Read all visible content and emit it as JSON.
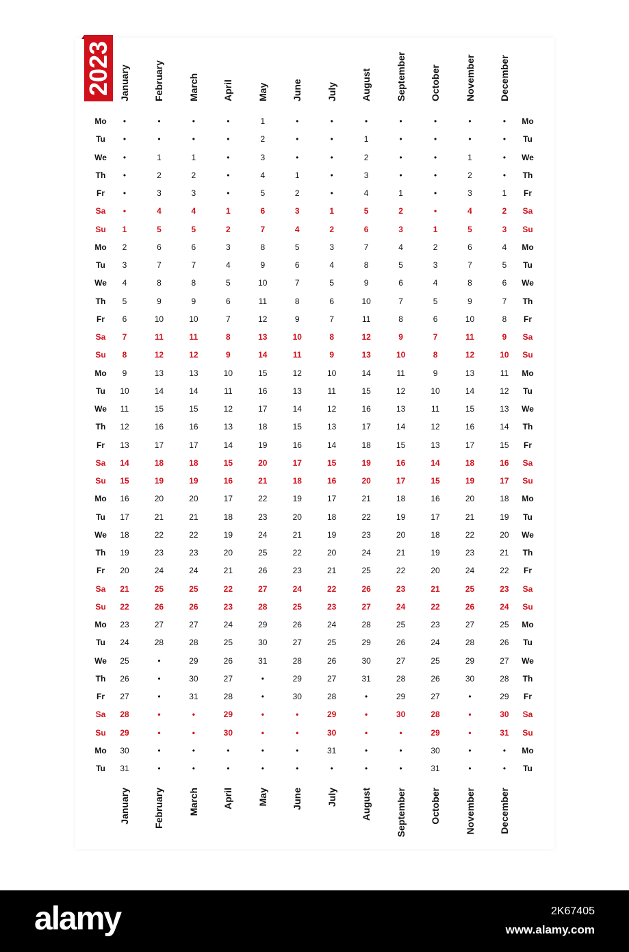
{
  "year": "2023",
  "accent_color": "#d0101b",
  "empty_marker": "•",
  "weekdays": [
    "Mo",
    "Tu",
    "We",
    "Th",
    "Fr",
    "Sa",
    "Su",
    "Mo",
    "Tu",
    "We",
    "Th",
    "Fr",
    "Sa",
    "Su",
    "Mo",
    "Tu",
    "We",
    "Th",
    "Fr",
    "Sa",
    "Su",
    "Mo",
    "Tu",
    "We",
    "Th",
    "Fr",
    "Sa",
    "Su",
    "Mo",
    "Tu",
    "We",
    "Th",
    "Fr",
    "Sa",
    "Su",
    "Mo",
    "Tu"
  ],
  "months": [
    {
      "name": "January",
      "cells": [
        null,
        null,
        null,
        null,
        null,
        null,
        1,
        2,
        3,
        4,
        5,
        6,
        7,
        8,
        9,
        10,
        11,
        12,
        13,
        14,
        15,
        16,
        17,
        18,
        19,
        20,
        21,
        22,
        23,
        24,
        25,
        26,
        27,
        28,
        29,
        30,
        31
      ]
    },
    {
      "name": "February",
      "cells": [
        null,
        null,
        1,
        2,
        3,
        4,
        5,
        6,
        7,
        8,
        9,
        10,
        11,
        12,
        13,
        14,
        15,
        16,
        17,
        18,
        19,
        20,
        21,
        22,
        23,
        24,
        25,
        26,
        27,
        28,
        null,
        null,
        null,
        null,
        null,
        null,
        null
      ]
    },
    {
      "name": "March",
      "cells": [
        null,
        null,
        1,
        2,
        3,
        4,
        5,
        6,
        7,
        8,
        9,
        10,
        11,
        12,
        13,
        14,
        15,
        16,
        17,
        18,
        19,
        20,
        21,
        22,
        23,
        24,
        25,
        26,
        27,
        28,
        29,
        30,
        31,
        null,
        null,
        null,
        null
      ]
    },
    {
      "name": "April",
      "cells": [
        null,
        null,
        null,
        null,
        null,
        1,
        2,
        3,
        4,
        5,
        6,
        7,
        8,
        9,
        10,
        11,
        12,
        13,
        14,
        15,
        16,
        17,
        18,
        19,
        20,
        21,
        22,
        23,
        24,
        25,
        26,
        27,
        28,
        29,
        30,
        null,
        null
      ]
    },
    {
      "name": "May",
      "cells": [
        1,
        2,
        3,
        4,
        5,
        6,
        7,
        8,
        9,
        10,
        11,
        12,
        13,
        14,
        15,
        16,
        17,
        18,
        19,
        20,
        21,
        22,
        23,
        24,
        25,
        26,
        27,
        28,
        29,
        30,
        31,
        null,
        null,
        null,
        null,
        null,
        null
      ]
    },
    {
      "name": "June",
      "cells": [
        null,
        null,
        null,
        1,
        2,
        3,
        4,
        5,
        6,
        7,
        8,
        9,
        10,
        11,
        12,
        13,
        14,
        15,
        16,
        17,
        18,
        19,
        20,
        21,
        22,
        23,
        24,
        25,
        26,
        27,
        28,
        29,
        30,
        null,
        null,
        null,
        null
      ]
    },
    {
      "name": "July",
      "cells": [
        null,
        null,
        null,
        null,
        null,
        1,
        2,
        3,
        4,
        5,
        6,
        7,
        8,
        9,
        10,
        11,
        12,
        13,
        14,
        15,
        16,
        17,
        18,
        19,
        20,
        21,
        22,
        23,
        24,
        25,
        26,
        27,
        28,
        29,
        30,
        31,
        null
      ]
    },
    {
      "name": "August",
      "cells": [
        null,
        1,
        2,
        3,
        4,
        5,
        6,
        7,
        8,
        9,
        10,
        11,
        12,
        13,
        14,
        15,
        16,
        17,
        18,
        19,
        20,
        21,
        22,
        23,
        24,
        25,
        26,
        27,
        28,
        29,
        30,
        31,
        null,
        null,
        null,
        null,
        null
      ]
    },
    {
      "name": "September",
      "cells": [
        null,
        null,
        null,
        null,
        1,
        2,
        3,
        4,
        5,
        6,
        7,
        8,
        9,
        10,
        11,
        12,
        13,
        14,
        15,
        16,
        17,
        18,
        19,
        20,
        21,
        22,
        23,
        24,
        25,
        26,
        27,
        28,
        29,
        30,
        null,
        null,
        null
      ]
    },
    {
      "name": "October",
      "cells": [
        null,
        null,
        null,
        null,
        null,
        null,
        1,
        2,
        3,
        4,
        5,
        6,
        7,
        8,
        9,
        10,
        11,
        12,
        13,
        14,
        15,
        16,
        17,
        18,
        19,
        20,
        21,
        22,
        23,
        24,
        25,
        26,
        27,
        28,
        29,
        30,
        31
      ]
    },
    {
      "name": "November",
      "cells": [
        null,
        null,
        1,
        2,
        3,
        4,
        5,
        6,
        7,
        8,
        9,
        10,
        11,
        12,
        13,
        14,
        15,
        16,
        17,
        18,
        19,
        20,
        21,
        22,
        23,
        24,
        25,
        26,
        27,
        28,
        29,
        30,
        null,
        null,
        null,
        null,
        null
      ]
    },
    {
      "name": "December",
      "cells": [
        null,
        null,
        null,
        null,
        1,
        2,
        3,
        4,
        5,
        6,
        7,
        8,
        9,
        10,
        11,
        12,
        13,
        14,
        15,
        16,
        17,
        18,
        19,
        20,
        21,
        22,
        23,
        24,
        25,
        26,
        27,
        28,
        29,
        30,
        31,
        null,
        null
      ]
    }
  ],
  "watermark": {
    "logo": "alamy",
    "image_id": "2K67405",
    "site": "www.alamy.com"
  }
}
